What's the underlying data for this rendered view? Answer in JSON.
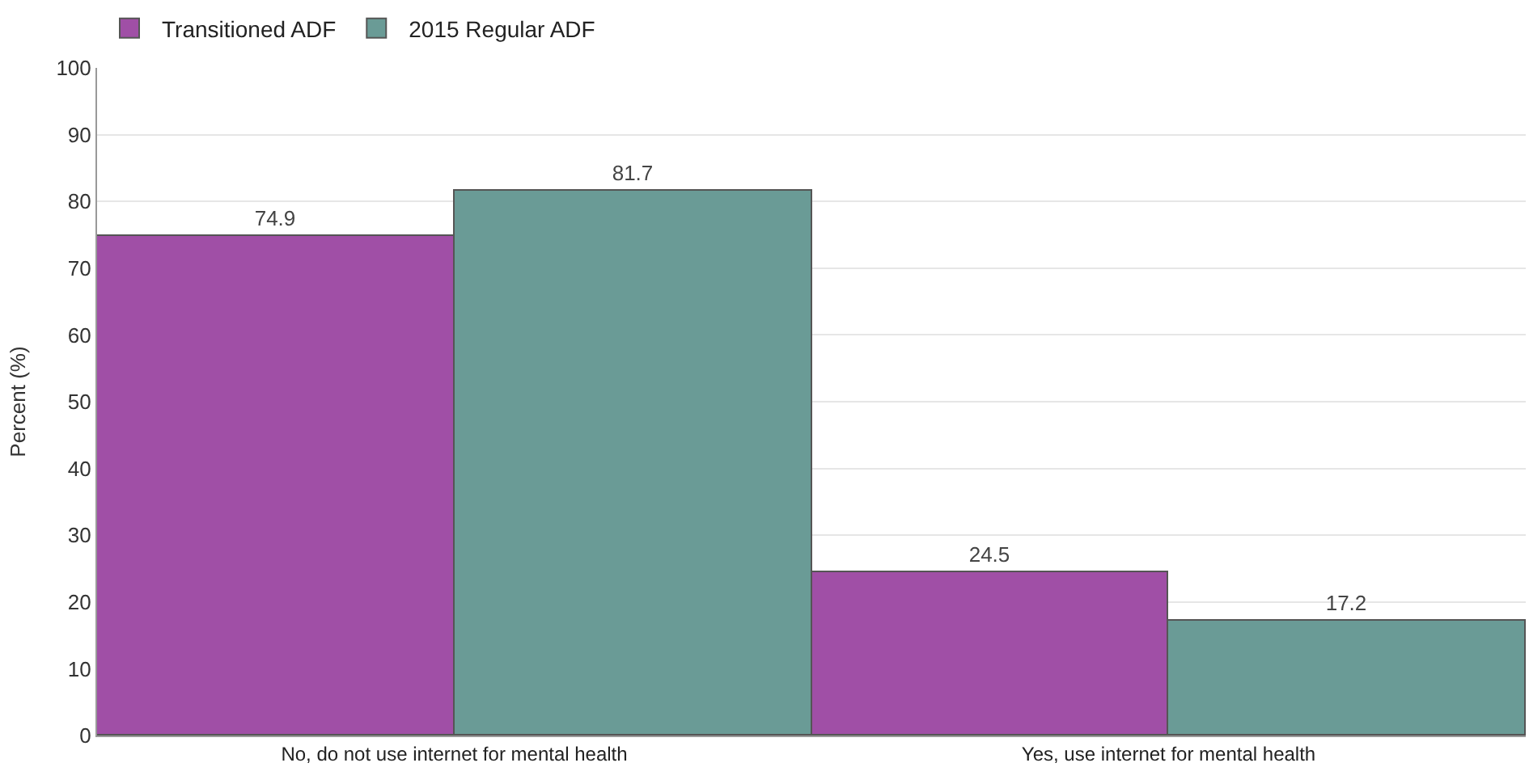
{
  "chart_data": {
    "type": "bar",
    "ylabel": "Percent (%)",
    "categories": [
      "No, do not use internet for mental health",
      "Yes, use internet for mental health"
    ],
    "series": [
      {
        "name": "Transitioned ADF",
        "color": "#a04fa6",
        "values": [
          74.9,
          24.5
        ]
      },
      {
        "name": "2015 Regular ADF",
        "color": "#6a9b96",
        "values": [
          81.7,
          17.2
        ]
      }
    ],
    "ylim": [
      0,
      100
    ],
    "yticks": [
      0,
      10,
      20,
      30,
      40,
      50,
      60,
      70,
      80,
      90,
      100
    ],
    "grid": "y",
    "legend": "top left",
    "data_labels": true
  }
}
